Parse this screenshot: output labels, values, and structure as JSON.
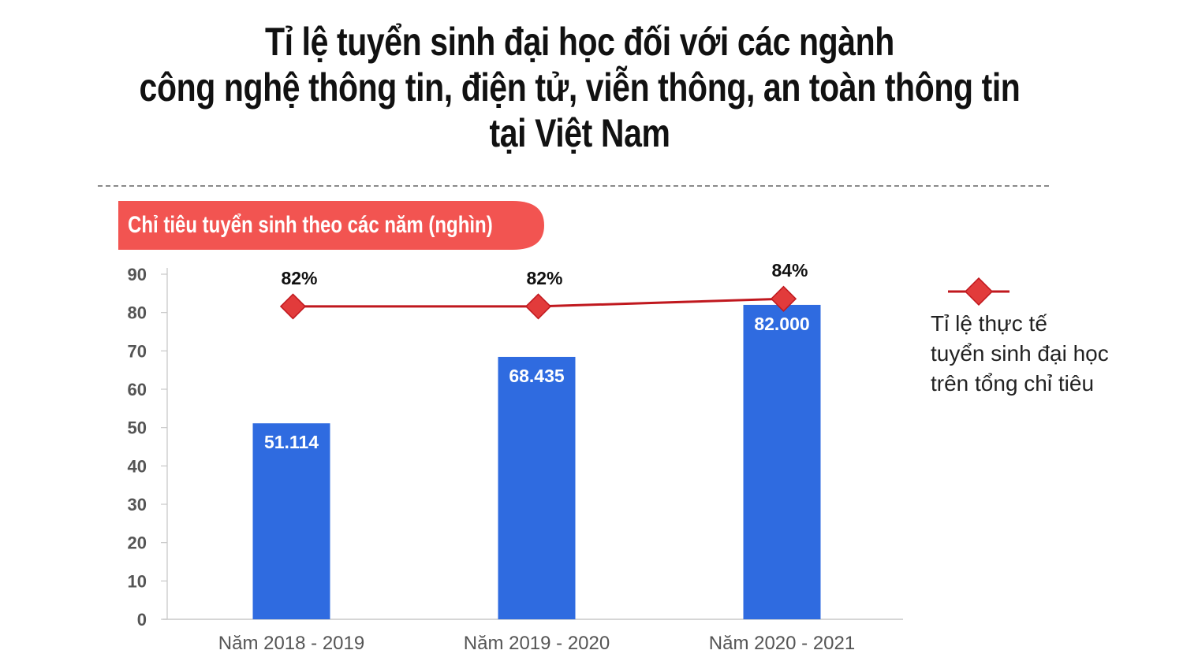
{
  "title_lines": [
    "Tỉ lệ tuyển sinh đại học đối với các ngành",
    "công nghệ thông tin, điện tử, viễn thông, an toàn thông tin",
    "tại Việt Nam"
  ],
  "subtitle": "Chỉ tiêu tuyển sinh theo các năm (nghìn)",
  "colors": {
    "bar": "#2f6be0",
    "line": "#c0181e",
    "marker": "#e23b3b",
    "banner": "#f25451"
  },
  "chart_data": {
    "type": "bar",
    "categories": [
      "Năm 2018 - 2019",
      "Năm 2019 - 2020",
      "Năm 2020 - 2021"
    ],
    "values": [
      51.114,
      68.435,
      82.0
    ],
    "value_labels": [
      "51.114",
      "68.435",
      "82.000"
    ],
    "ylim": [
      0,
      90
    ],
    "yticks": [
      0,
      10,
      20,
      30,
      40,
      50,
      60,
      70,
      80,
      90
    ],
    "grid": false,
    "line_series": {
      "name": "Tỉ lệ thực tế tuyển sinh đại học trên tổng chỉ tiêu",
      "values": [
        82,
        82,
        84
      ],
      "labels": [
        "82%",
        "82%",
        "84%"
      ]
    },
    "legend_position": "right"
  },
  "legend": {
    "lines": [
      "Tỉ lệ thực tế",
      "tuyển sinh đại học",
      "trên tổng chỉ tiêu"
    ]
  }
}
